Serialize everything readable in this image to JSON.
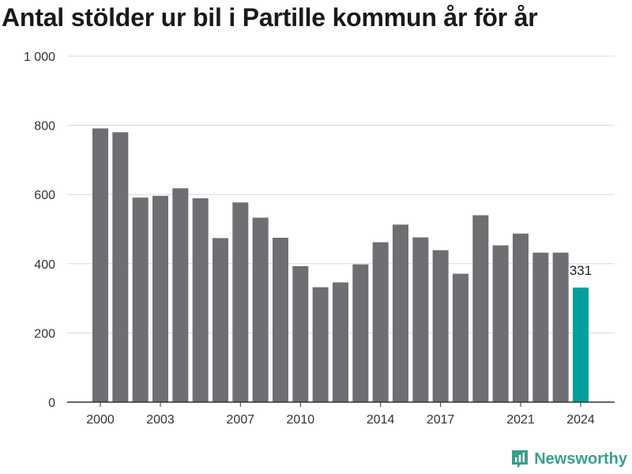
{
  "title": "Antal stölder ur bil i Partille kommun år för år",
  "brand": {
    "name": "Newsworthy",
    "icon": "newsworthy-logo-icon"
  },
  "colors": {
    "bar": "#6e6e73",
    "highlight": "#00a19a",
    "grid": "#d9d9d9",
    "axis": "#333333"
  },
  "chart_data": {
    "type": "bar",
    "title": "Antal stölder ur bil i Partille kommun år för år",
    "xlabel": "",
    "ylabel": "",
    "ylim": [
      0,
      1000
    ],
    "yticks": [
      0,
      200,
      400,
      600,
      800,
      1000
    ],
    "ytick_labels": [
      "0",
      "200",
      "400",
      "600",
      "800",
      "1 000"
    ],
    "xtick_labels": [
      "2000",
      "2003",
      "2007",
      "2010",
      "2014",
      "2017",
      "2021",
      "2024"
    ],
    "grid": true,
    "categories": [
      "2000",
      "2001",
      "2002",
      "2003",
      "2004",
      "2005",
      "2006",
      "2007",
      "2008",
      "2009",
      "2010",
      "2011",
      "2012",
      "2013",
      "2014",
      "2015",
      "2016",
      "2017",
      "2018",
      "2019",
      "2020",
      "2021",
      "2022",
      "2023",
      "2024"
    ],
    "values": [
      791,
      780,
      591,
      596,
      618,
      589,
      474,
      577,
      533,
      475,
      393,
      332,
      346,
      398,
      462,
      513,
      476,
      439,
      371,
      540,
      453,
      487,
      432,
      432,
      331
    ],
    "highlight": {
      "category": "2024",
      "label": "331"
    }
  }
}
